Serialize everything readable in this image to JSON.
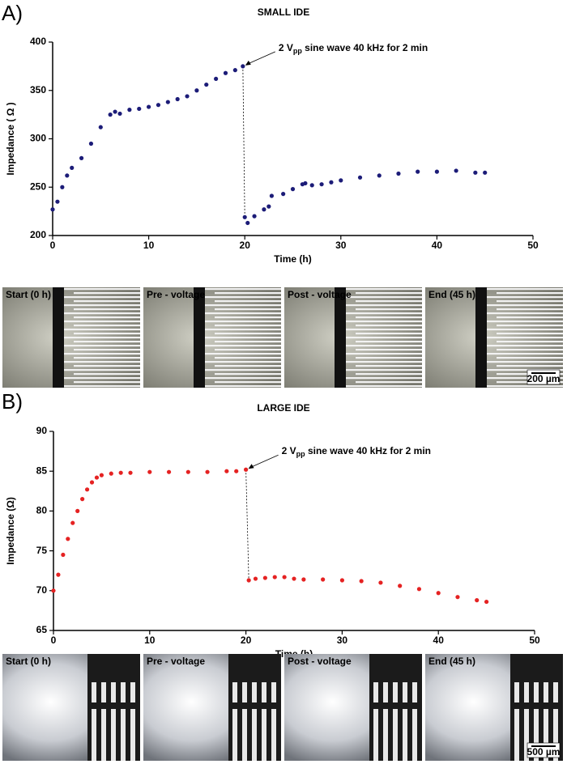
{
  "chart_data": [
    {
      "type": "scatter",
      "title": "SMALL IDE",
      "xlabel": "Time (h)",
      "ylabel": "Impedance ( Ω )",
      "annotation": {
        "prefix": "2 V",
        "subscript": "pp",
        "suffix": " sine wave 40 kHz for 2 min"
      },
      "xlim": [
        0,
        50
      ],
      "xticks": [
        0,
        10,
        20,
        30,
        40,
        50
      ],
      "ylim": [
        200,
        400
      ],
      "yticks": [
        200,
        250,
        300,
        350,
        400
      ],
      "color": "#1c1c78",
      "x": [
        0,
        0.5,
        1,
        1.5,
        2,
        3,
        4,
        5,
        6,
        6.5,
        7,
        8,
        9,
        10,
        11,
        12,
        13,
        14,
        15,
        16,
        17,
        18,
        19,
        19.8,
        20,
        20.3,
        21,
        22,
        22.5,
        22.8,
        24,
        25,
        26,
        26.3,
        27,
        28,
        29,
        30,
        32,
        34,
        36,
        38,
        40,
        42,
        44,
        45
      ],
      "values": [
        227,
        235,
        250,
        262,
        270,
        280,
        295,
        312,
        325,
        328,
        326,
        330,
        331,
        333,
        335,
        338,
        341,
        344,
        350,
        356,
        362,
        368,
        371,
        375,
        219,
        213,
        220,
        227,
        230,
        241,
        243,
        248,
        253,
        254,
        252,
        253,
        255,
        257,
        260,
        262,
        264,
        266,
        266,
        267,
        265,
        265
      ]
    },
    {
      "type": "scatter",
      "title": "LARGE IDE",
      "xlabel": "Time (h)",
      "ylabel": "Impedance (Ω)",
      "annotation": {
        "prefix": "2 V",
        "subscript": "pp",
        "suffix": " sine wave 40 kHz for 2 min"
      },
      "xlim": [
        0,
        50
      ],
      "xticks": [
        0,
        10,
        20,
        30,
        40,
        50
      ],
      "ylim": [
        65,
        90
      ],
      "yticks": [
        65,
        70,
        75,
        80,
        85,
        90
      ],
      "color": "#e52222",
      "x": [
        0,
        0.5,
        1,
        1.5,
        2,
        2.5,
        3,
        3.5,
        4,
        4.5,
        5,
        6,
        7,
        8,
        10,
        12,
        14,
        16,
        18,
        19,
        20,
        20.3,
        21,
        22,
        23,
        24,
        25,
        26,
        28,
        30,
        32,
        34,
        36,
        38,
        40,
        42,
        44,
        45
      ],
      "values": [
        70,
        72,
        74.5,
        76.5,
        78.5,
        80,
        81.5,
        82.7,
        83.6,
        84.2,
        84.5,
        84.7,
        84.8,
        84.8,
        84.9,
        84.9,
        84.9,
        84.9,
        85,
        85,
        85.2,
        71.3,
        71.5,
        71.6,
        71.7,
        71.7,
        71.5,
        71.4,
        71.4,
        71.3,
        71.2,
        71,
        70.6,
        70.2,
        69.7,
        69.2,
        68.8,
        68.6
      ]
    }
  ],
  "panels": [
    {
      "label": "A)",
      "images": [
        "Start (0 h)",
        "Pre - voltage",
        "Post - voltage",
        "End (45 h)"
      ],
      "scale_bar": "200 µm"
    },
    {
      "label": "B)",
      "images": [
        "Start (0 h)",
        "Pre - voltage",
        "Post - voltage",
        "End (45 h)"
      ],
      "scale_bar": "500 µm"
    }
  ]
}
